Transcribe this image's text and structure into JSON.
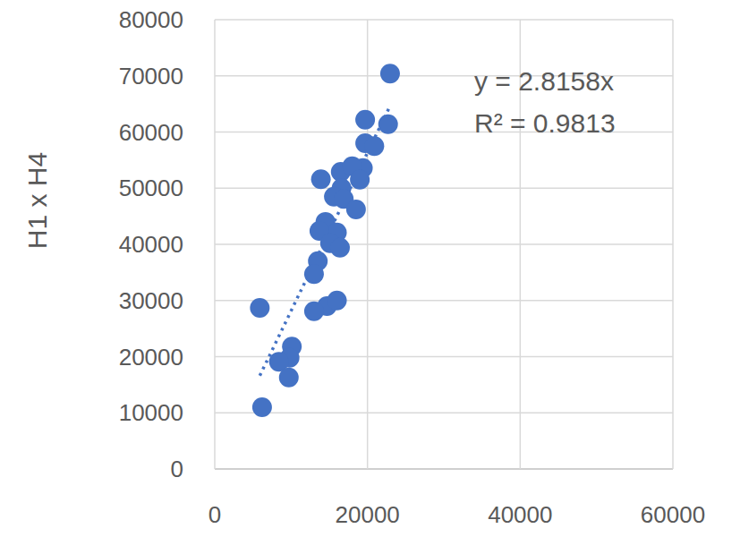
{
  "chart_data": {
    "type": "scatter",
    "y_label": "H1 x H4",
    "x": [
      22960,
      19700,
      22700,
      19700,
      20900,
      19400,
      13900,
      16500,
      18000,
      19000,
      16600,
      15600,
      16900,
      18500,
      14500,
      16000,
      13700,
      15100,
      16400,
      13500,
      13000,
      14700,
      16000,
      13000,
      5900,
      10100,
      9800,
      8400,
      9700,
      6200
    ],
    "values": [
      70400,
      62200,
      61400,
      58000,
      57500,
      53600,
      51600,
      52900,
      53900,
      51500,
      50000,
      48500,
      48100,
      46200,
      44000,
      42100,
      42400,
      40200,
      39400,
      37000,
      34700,
      29000,
      30000,
      28100,
      28700,
      21800,
      19800,
      19100,
      16300,
      11000
    ],
    "color": "#4472c4",
    "marker": "circle",
    "trendline": {
      "slope": 2.8158,
      "line_style": "dotted"
    },
    "annotations": [
      "y = 2.8158x",
      "R² = 0.9813"
    ],
    "xlim": [
      0,
      60000
    ],
    "xticks": [
      0,
      20000,
      40000,
      60000
    ],
    "ylim": [
      0,
      80000
    ],
    "yticks": [
      0,
      10000,
      20000,
      30000,
      40000,
      50000,
      60000,
      70000,
      80000
    ],
    "grid": true
  }
}
